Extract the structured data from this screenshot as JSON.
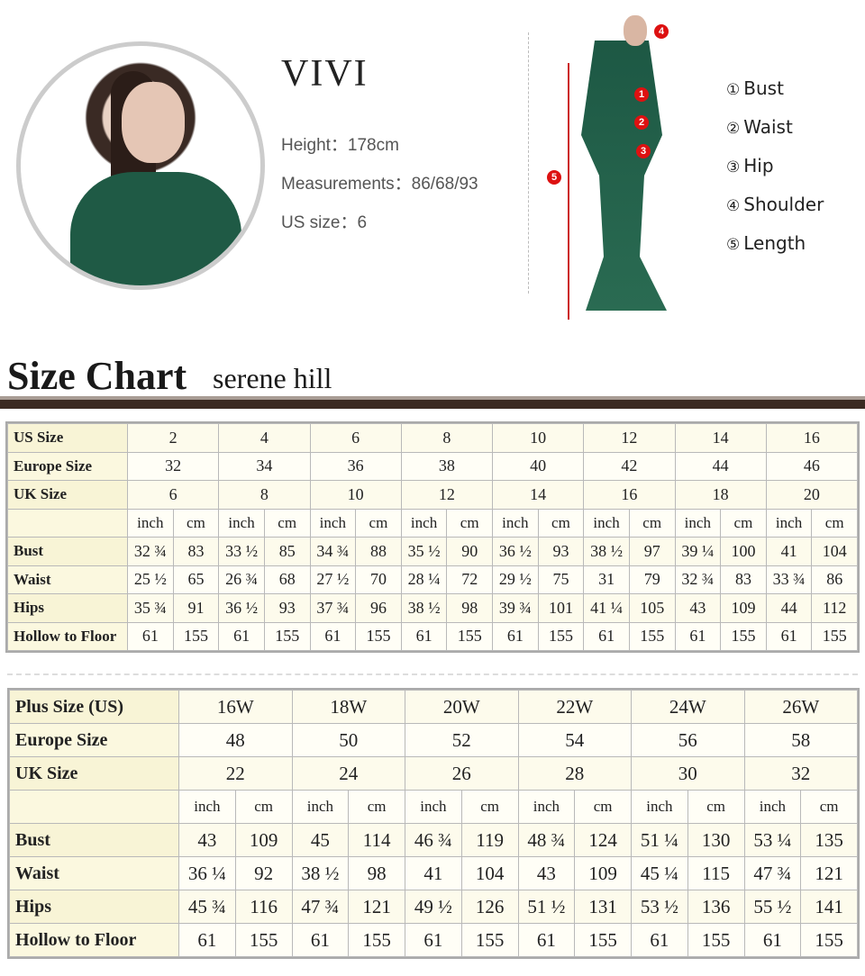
{
  "model": {
    "name": "VIVI",
    "height": "Height：178cm",
    "measurements": "Measurements：86/68/93",
    "us_size": "US size：6"
  },
  "legend": [
    {
      "num": "①",
      "label": "Bust"
    },
    {
      "num": "②",
      "label": "Waist"
    },
    {
      "num": "③",
      "label": "Hip"
    },
    {
      "num": "④",
      "label": "Shoulder"
    },
    {
      "num": "⑤",
      "label": "Length"
    }
  ],
  "figure_marks": [
    "1",
    "2",
    "3",
    "4",
    "5"
  ],
  "size_chart": {
    "title": "Size Chart",
    "brand": "serene hill"
  },
  "colors": {
    "marker": "#dd1111",
    "dress": "#1f5a45",
    "band": "#3b2a22",
    "table_tint": "#fbf8df"
  },
  "standard_table": {
    "header_rows": [
      {
        "label": "US Size",
        "values": [
          "2",
          "4",
          "6",
          "8",
          "10",
          "12",
          "14",
          "16"
        ]
      },
      {
        "label": "Europe Size",
        "values": [
          "32",
          "34",
          "36",
          "38",
          "40",
          "42",
          "44",
          "46"
        ]
      },
      {
        "label": "UK Size",
        "values": [
          "6",
          "8",
          "10",
          "12",
          "14",
          "16",
          "18",
          "20"
        ]
      }
    ],
    "units": [
      "inch",
      "cm"
    ],
    "rows": [
      {
        "label": "Bust",
        "values": [
          "32 ¾",
          "83",
          "33 ½",
          "85",
          "34 ¾",
          "88",
          "35 ½",
          "90",
          "36 ½",
          "93",
          "38 ½",
          "97",
          "39 ¼",
          "100",
          "41",
          "104"
        ]
      },
      {
        "label": "Waist",
        "values": [
          "25 ½",
          "65",
          "26 ¾",
          "68",
          "27 ½",
          "70",
          "28 ¼",
          "72",
          "29 ½",
          "75",
          "31",
          "79",
          "32 ¾",
          "83",
          "33 ¾",
          "86"
        ]
      },
      {
        "label": "Hips",
        "values": [
          "35 ¾",
          "91",
          "36 ½",
          "93",
          "37 ¾",
          "96",
          "38 ½",
          "98",
          "39 ¾",
          "101",
          "41 ¼",
          "105",
          "43",
          "109",
          "44",
          "112"
        ]
      },
      {
        "label": "Hollow to Floor",
        "values": [
          "61",
          "155",
          "61",
          "155",
          "61",
          "155",
          "61",
          "155",
          "61",
          "155",
          "61",
          "155",
          "61",
          "155",
          "61",
          "155"
        ]
      }
    ]
  },
  "plus_table": {
    "header_rows": [
      {
        "label": "Plus Size (US)",
        "values": [
          "16W",
          "18W",
          "20W",
          "22W",
          "24W",
          "26W"
        ]
      },
      {
        "label": "Europe Size",
        "values": [
          "48",
          "50",
          "52",
          "54",
          "56",
          "58"
        ]
      },
      {
        "label": "UK Size",
        "values": [
          "22",
          "24",
          "26",
          "28",
          "30",
          "32"
        ]
      }
    ],
    "units": [
      "inch",
      "cm"
    ],
    "rows": [
      {
        "label": "Bust",
        "values": [
          "43",
          "109",
          "45",
          "114",
          "46 ¾",
          "119",
          "48 ¾",
          "124",
          "51 ¼",
          "130",
          "53 ¼",
          "135"
        ]
      },
      {
        "label": "Waist",
        "values": [
          "36 ¼",
          "92",
          "38 ½",
          "98",
          "41",
          "104",
          "43",
          "109",
          "45 ¼",
          "115",
          "47 ¾",
          "121"
        ]
      },
      {
        "label": "Hips",
        "values": [
          "45 ¾",
          "116",
          "47 ¾",
          "121",
          "49 ½",
          "126",
          "51 ½",
          "131",
          "53 ½",
          "136",
          "55 ½",
          "141"
        ]
      },
      {
        "label": "Hollow to Floor",
        "values": [
          "61",
          "155",
          "61",
          "155",
          "61",
          "155",
          "61",
          "155",
          "61",
          "155",
          "61",
          "155"
        ]
      }
    ]
  }
}
